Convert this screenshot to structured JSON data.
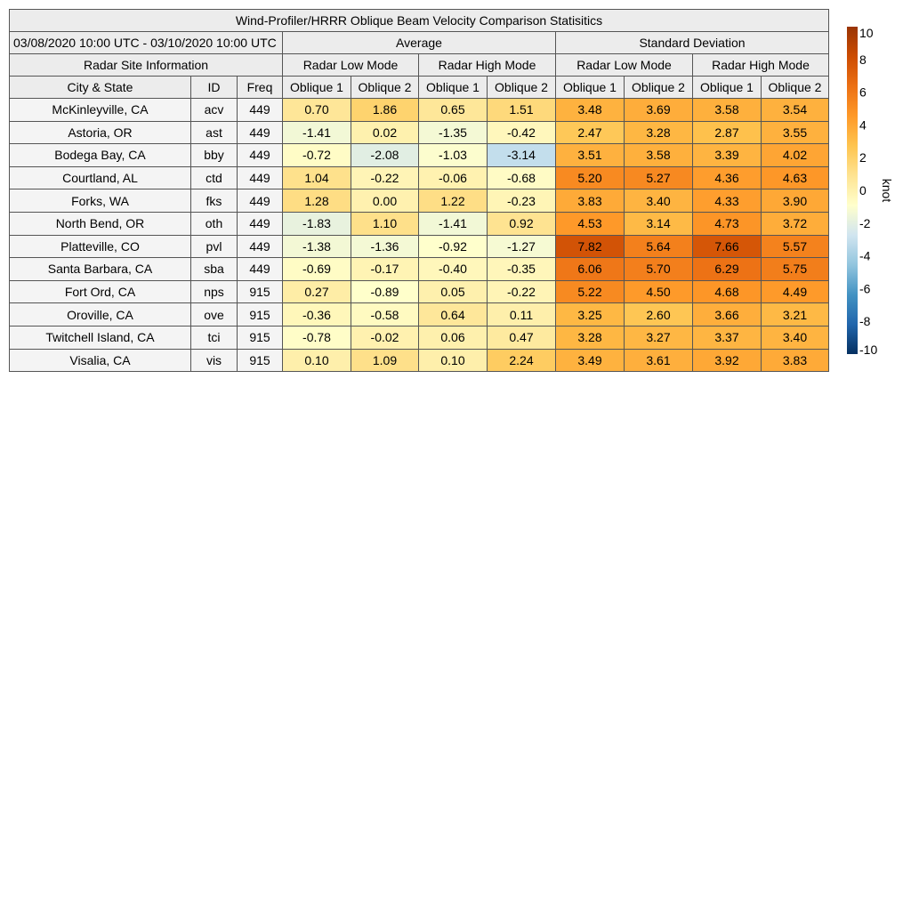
{
  "chart_data": {
    "type": "table",
    "title": "Wind-Profiler/HRRR Oblique Beam Velocity Comparison Statisitics",
    "date_range": "03/08/2020 10:00 UTC - 03/10/2020 10:00 UTC",
    "group_headers": [
      "Average",
      "Standard Deviation"
    ],
    "site_info_header": "Radar Site Information",
    "mode_headers": [
      "Radar Low Mode",
      "Radar High Mode",
      "Radar Low Mode",
      "Radar High Mode"
    ],
    "column_headers": [
      "City & State",
      "ID",
      "Freq",
      "Oblique 1",
      "Oblique 2",
      "Oblique 1",
      "Oblique 2",
      "Oblique 1",
      "Oblique 2",
      "Oblique 1",
      "Oblique 2"
    ],
    "rows": [
      {
        "city": "McKinleyville, CA",
        "id": "acv",
        "freq": "449",
        "values": [
          "0.70",
          "1.86",
          "0.65",
          "1.51",
          "3.48",
          "3.69",
          "3.58",
          "3.54"
        ]
      },
      {
        "city": "Astoria, OR",
        "id": "ast",
        "freq": "449",
        "values": [
          "-1.41",
          "0.02",
          "-1.35",
          "-0.42",
          "2.47",
          "3.28",
          "2.87",
          "3.55"
        ]
      },
      {
        "city": "Bodega Bay, CA",
        "id": "bby",
        "freq": "449",
        "values": [
          "-0.72",
          "-2.08",
          "-1.03",
          "-3.14",
          "3.51",
          "3.58",
          "3.39",
          "4.02"
        ]
      },
      {
        "city": "Courtland, AL",
        "id": "ctd",
        "freq": "449",
        "values": [
          "1.04",
          "-0.22",
          "-0.06",
          "-0.68",
          "5.20",
          "5.27",
          "4.36",
          "4.63"
        ]
      },
      {
        "city": "Forks, WA",
        "id": "fks",
        "freq": "449",
        "values": [
          "1.28",
          "0.00",
          "1.22",
          "-0.23",
          "3.83",
          "3.40",
          "4.33",
          "3.90"
        ]
      },
      {
        "city": "North Bend, OR",
        "id": "oth",
        "freq": "449",
        "values": [
          "-1.83",
          "1.10",
          "-1.41",
          "0.92",
          "4.53",
          "3.14",
          "4.73",
          "3.72"
        ]
      },
      {
        "city": "Platteville, CO",
        "id": "pvl",
        "freq": "449",
        "values": [
          "-1.38",
          "-1.36",
          "-0.92",
          "-1.27",
          "7.82",
          "5.64",
          "7.66",
          "5.57"
        ]
      },
      {
        "city": "Santa Barbara, CA",
        "id": "sba",
        "freq": "449",
        "values": [
          "-0.69",
          "-0.17",
          "-0.40",
          "-0.35",
          "6.06",
          "5.70",
          "6.29",
          "5.75"
        ]
      },
      {
        "city": "Fort Ord, CA",
        "id": "nps",
        "freq": "915",
        "values": [
          "0.27",
          "-0.89",
          "0.05",
          "-0.22",
          "5.22",
          "4.50",
          "4.68",
          "4.49"
        ]
      },
      {
        "city": "Oroville, CA",
        "id": "ove",
        "freq": "915",
        "values": [
          "-0.36",
          "-0.58",
          "0.64",
          "0.11",
          "3.25",
          "2.60",
          "3.66",
          "3.21"
        ]
      },
      {
        "city": "Twitchell Island, CA",
        "id": "tci",
        "freq": "915",
        "values": [
          "-0.78",
          "-0.02",
          "0.06",
          "0.47",
          "3.28",
          "3.27",
          "3.37",
          "3.40"
        ]
      },
      {
        "city": "Visalia, CA",
        "id": "vis",
        "freq": "915",
        "values": [
          "0.10",
          "1.09",
          "0.10",
          "2.24",
          "3.49",
          "3.61",
          "3.92",
          "3.83"
        ]
      }
    ],
    "colorbar": {
      "label": "knot",
      "range": [
        -10,
        10
      ],
      "ticks": [
        "10",
        "8",
        "6",
        "4",
        "2",
        "0",
        "-2",
        "-4",
        "-6",
        "-8",
        "-10"
      ],
      "colors": [
        "#053061",
        "#2166ac",
        "#4393c3",
        "#92c5de",
        "#d1e5f0",
        "#ffffcc",
        "#fee391",
        "#fec44f",
        "#fe9929",
        "#ec7014",
        "#cc4c02",
        "#993404"
      ]
    }
  }
}
